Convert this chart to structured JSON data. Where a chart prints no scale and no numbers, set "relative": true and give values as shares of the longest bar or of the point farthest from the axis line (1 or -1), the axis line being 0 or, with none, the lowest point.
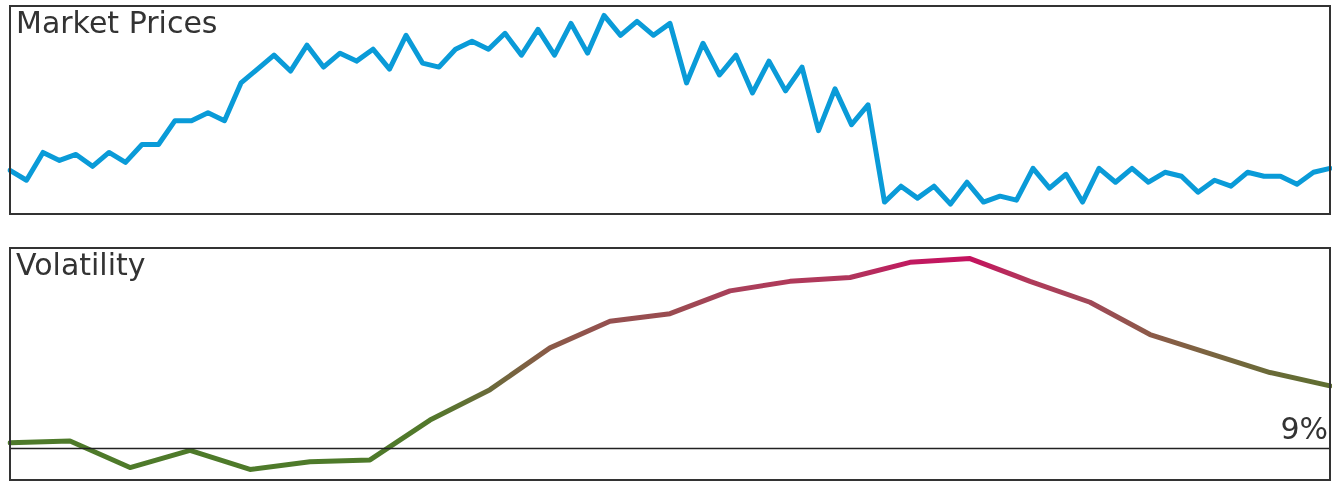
{
  "chart_data": [
    {
      "type": "line",
      "title": "Market Prices",
      "relative": true,
      "tick_labels": false,
      "color": "#0a9bd8",
      "categories": [
        null,
        null,
        null,
        null,
        null,
        null,
        null,
        null,
        null,
        null,
        null,
        null,
        null,
        null,
        null,
        null,
        null,
        null,
        null,
        null,
        null,
        null,
        null,
        null,
        null,
        null,
        null,
        null,
        null,
        null,
        null,
        null,
        null,
        null,
        null,
        null,
        null,
        null,
        null,
        null,
        null,
        null,
        null,
        null,
        null,
        null,
        null,
        null,
        null,
        null,
        null,
        null,
        null,
        null,
        null,
        null,
        null,
        null,
        null,
        null,
        null,
        null,
        null,
        null,
        null,
        null,
        null,
        null,
        null,
        null,
        null,
        null,
        null,
        null,
        null,
        null,
        null,
        null,
        null,
        null,
        null
      ],
      "values": [
        0.22,
        0.17,
        0.31,
        0.27,
        0.3,
        0.24,
        0.31,
        0.26,
        0.35,
        0.35,
        0.47,
        0.47,
        0.51,
        0.47,
        0.66,
        0.73,
        0.8,
        0.72,
        0.85,
        0.74,
        0.81,
        0.77,
        0.83,
        0.73,
        0.9,
        0.76,
        0.74,
        0.83,
        0.87,
        0.83,
        0.91,
        0.8,
        0.93,
        0.8,
        0.96,
        0.81,
        1,
        0.9,
        0.97,
        0.9,
        0.96,
        0.66,
        0.86,
        0.7,
        0.8,
        0.61,
        0.77,
        0.62,
        0.74,
        0.42,
        0.63,
        0.45,
        0.55,
        0.06,
        0.14,
        0.08,
        0.14,
        0.05,
        0.16,
        0.06,
        0.09,
        0.07,
        0.23,
        0.13,
        0.2,
        0.06,
        0.23,
        0.16,
        0.23,
        0.16,
        0.21,
        0.19,
        0.11,
        0.17,
        0.14,
        0.21,
        0.19,
        0.19,
        0.15,
        0.21,
        0.23
      ]
    },
    {
      "type": "line",
      "title": "Volatility",
      "relative": true,
      "tick_labels": false,
      "categories": [
        null,
        null,
        null,
        null,
        null,
        null,
        null,
        null,
        null,
        null,
        null,
        null,
        null,
        null,
        null,
        null,
        null,
        null,
        null,
        null,
        null,
        null,
        null
      ],
      "values": [
        0.03,
        0.04,
        -0.1,
        -0.01,
        -0.11,
        -0.07,
        -0.06,
        0.15,
        0.31,
        0.53,
        0.67,
        0.71,
        0.83,
        0.88,
        0.9,
        0.98,
        1,
        0.88,
        0.77,
        0.6,
        0.5,
        0.4,
        0.33
      ],
      "color": "#7a5a45",
      "colors": [
        "#4e7a2a",
        "#4e7a2a",
        "#4e7a2a",
        "#4e7a2a",
        "#4e7a2a",
        "#4e7a2a",
        "#4e7a2a",
        "#52782b",
        "#6a6a3a",
        "#8a5a48",
        "#955050",
        "#9a4c50",
        "#a8405a",
        "#b03a5a",
        "#b0365c",
        "#c01a60",
        "#c4125e",
        "#b03a5a",
        "#a04858",
        "#8c5a48",
        "#7a6440",
        "#6a6a38",
        "#5e6e30"
      ],
      "annotations": [
        "9%"
      ],
      "ref_lines": [
        {
          "axis": "y",
          "value": 0,
          "color": "#222222"
        }
      ]
    }
  ]
}
